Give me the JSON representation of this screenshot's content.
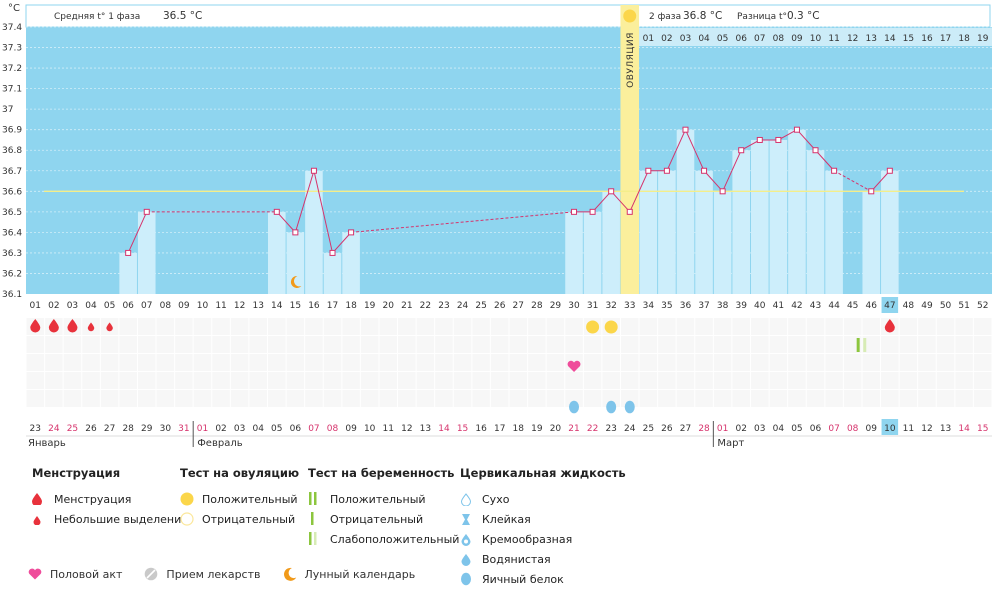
{
  "header": {
    "unit": "°C",
    "phase1_label": "Средняя t° 1 фаза",
    "phase1_value": "36.5 °C",
    "phase2_label": "2 фаза",
    "phase2_value": "36.8 °C",
    "diff_label": "Разница t°",
    "diff_value": "0.3 °C",
    "ovulation_label": "ОВУЛЯЦИЯ"
  },
  "colors": {
    "plot_bg": "#8fd5ef",
    "bar_fill": "#cdeefb",
    "line": "#d6336c",
    "coverline": "#f4ee8a",
    "ovulation_band": "#fbef9c",
    "weekend": "#d6336c",
    "drop_red": "#e8323c",
    "ov_yellow": "#fbd64a",
    "preg_green": "#8cc63e",
    "heart": "#ef4c9b",
    "egg_white_blue": "#7ec4ea",
    "moon": "#f19a1a"
  },
  "chart_data": {
    "type": "line",
    "title": "",
    "ylabel": "°C",
    "ylim": [
      36.1,
      37.4
    ],
    "yticks": [
      36.1,
      36.2,
      36.3,
      36.4,
      36.5,
      36.6,
      36.7,
      36.8,
      36.9,
      37,
      37.1,
      37.2,
      37.3,
      37.4
    ],
    "coverline": 36.6,
    "ovulation_day": 33,
    "cycle_days": [
      "01",
      "02",
      "03",
      "04",
      "05",
      "06",
      "07",
      "08",
      "09",
      "10",
      "11",
      "12",
      "13",
      "14",
      "15",
      "16",
      "17",
      "18",
      "19",
      "20",
      "21",
      "22",
      "23",
      "24",
      "25",
      "26",
      "27",
      "28",
      "29",
      "30",
      "31",
      "32",
      "33",
      "34",
      "35",
      "36",
      "37",
      "38",
      "39",
      "40",
      "41",
      "42",
      "43",
      "44",
      "45",
      "46",
      "47",
      "48",
      "49",
      "50",
      "51",
      "52"
    ],
    "phase2_day_numbers": [
      "01",
      "02",
      "03",
      "04",
      "05",
      "06",
      "07",
      "08",
      "09",
      "10",
      "11",
      "12",
      "13",
      "14",
      "15",
      "16",
      "17",
      "18",
      "19"
    ],
    "current_day": 47,
    "series": [
      {
        "points": [
          {
            "day": 6,
            "temp": 36.3
          },
          {
            "day": 7,
            "temp": 36.5
          },
          {
            "day": 14,
            "temp": 36.5
          },
          {
            "day": 15,
            "temp": 36.4
          },
          {
            "day": 16,
            "temp": 36.7
          },
          {
            "day": 17,
            "temp": 36.3
          },
          {
            "day": 18,
            "temp": 36.4
          },
          {
            "day": 30,
            "temp": 36.5
          },
          {
            "day": 31,
            "temp": 36.5
          },
          {
            "day": 32,
            "temp": 36.6
          },
          {
            "day": 33,
            "temp": 36.5
          },
          {
            "day": 34,
            "temp": 36.7
          },
          {
            "day": 35,
            "temp": 36.7
          },
          {
            "day": 36,
            "temp": 36.9
          },
          {
            "day": 37,
            "temp": 36.7
          },
          {
            "day": 38,
            "temp": 36.6
          },
          {
            "day": 39,
            "temp": 36.8
          },
          {
            "day": 40,
            "temp": 36.85
          },
          {
            "day": 41,
            "temp": 36.85
          },
          {
            "day": 42,
            "temp": 36.9
          },
          {
            "day": 43,
            "temp": 36.8
          },
          {
            "day": 44,
            "temp": 36.7
          },
          {
            "day": 46,
            "temp": 36.6
          },
          {
            "day": 47,
            "temp": 36.7
          }
        ]
      }
    ],
    "dates": [
      {
        "d": "23",
        "w": false
      },
      {
        "d": "24",
        "w": true
      },
      {
        "d": "25",
        "w": true
      },
      {
        "d": "26",
        "w": false
      },
      {
        "d": "27",
        "w": false
      },
      {
        "d": "28",
        "w": false
      },
      {
        "d": "29",
        "w": false
      },
      {
        "d": "30",
        "w": false
      },
      {
        "d": "31",
        "w": true
      },
      {
        "d": "01",
        "w": true
      },
      {
        "d": "02",
        "w": false
      },
      {
        "d": "03",
        "w": false
      },
      {
        "d": "04",
        "w": false
      },
      {
        "d": "05",
        "w": false
      },
      {
        "d": "06",
        "w": false
      },
      {
        "d": "07",
        "w": true
      },
      {
        "d": "08",
        "w": true
      },
      {
        "d": "09",
        "w": false
      },
      {
        "d": "10",
        "w": false
      },
      {
        "d": "11",
        "w": false
      },
      {
        "d": "12",
        "w": false
      },
      {
        "d": "13",
        "w": false
      },
      {
        "d": "14",
        "w": true
      },
      {
        "d": "15",
        "w": true
      },
      {
        "d": "16",
        "w": false
      },
      {
        "d": "17",
        "w": false
      },
      {
        "d": "18",
        "w": false
      },
      {
        "d": "19",
        "w": false
      },
      {
        "d": "20",
        "w": false
      },
      {
        "d": "21",
        "w": true
      },
      {
        "d": "22",
        "w": true
      },
      {
        "d": "23",
        "w": false
      },
      {
        "d": "24",
        "w": false
      },
      {
        "d": "25",
        "w": false
      },
      {
        "d": "26",
        "w": false
      },
      {
        "d": "27",
        "w": false
      },
      {
        "d": "28",
        "w": true
      },
      {
        "d": "01",
        "w": true
      },
      {
        "d": "02",
        "w": false
      },
      {
        "d": "03",
        "w": false
      },
      {
        "d": "04",
        "w": false
      },
      {
        "d": "05",
        "w": false
      },
      {
        "d": "06",
        "w": false
      },
      {
        "d": "07",
        "w": true
      },
      {
        "d": "08",
        "w": true
      },
      {
        "d": "09",
        "w": false
      },
      {
        "d": "10",
        "w": false
      },
      {
        "d": "11",
        "w": false
      },
      {
        "d": "12",
        "w": false
      },
      {
        "d": "13",
        "w": false
      },
      {
        "d": "14",
        "w": true
      },
      {
        "d": "15",
        "w": true
      }
    ],
    "months": [
      {
        "name": "Январь",
        "start_day": 1
      },
      {
        "name": "Февраль",
        "start_day": 10
      },
      {
        "name": "Март",
        "start_day": 38
      }
    ],
    "markers": {
      "menstruation": [
        1,
        2,
        3
      ],
      "light_spotting": [
        4,
        5
      ],
      "menstruation_late": [
        47
      ],
      "ovulation_test_positive": [
        31,
        32
      ],
      "pregnancy_test_negative": [
        45
      ],
      "pregnancy_test_weak": [
        46
      ],
      "intercourse": [
        30
      ],
      "egg_white": [
        30,
        32,
        33
      ],
      "moon": [
        15
      ]
    }
  },
  "legend": {
    "menstruation": {
      "title": "Менструация",
      "items": [
        "Менструация",
        "Небольшие выделения"
      ]
    },
    "ovulation_test": {
      "title": "Тест на овуляцию",
      "items": [
        "Положительный",
        "Отрицательный"
      ]
    },
    "pregnancy_test": {
      "title": "Тест на беременность",
      "items": [
        "Положительный",
        "Отрицательный",
        "Слабоположительный"
      ]
    },
    "cervical": {
      "title": "Цервикальная жидкость",
      "items": [
        "Сухо",
        "Клейкая",
        "Кремообразная",
        "Водянистая",
        "Яичный белок"
      ]
    },
    "other": [
      "Половой акт",
      "Прием лекарств",
      "Лунный календарь"
    ]
  }
}
